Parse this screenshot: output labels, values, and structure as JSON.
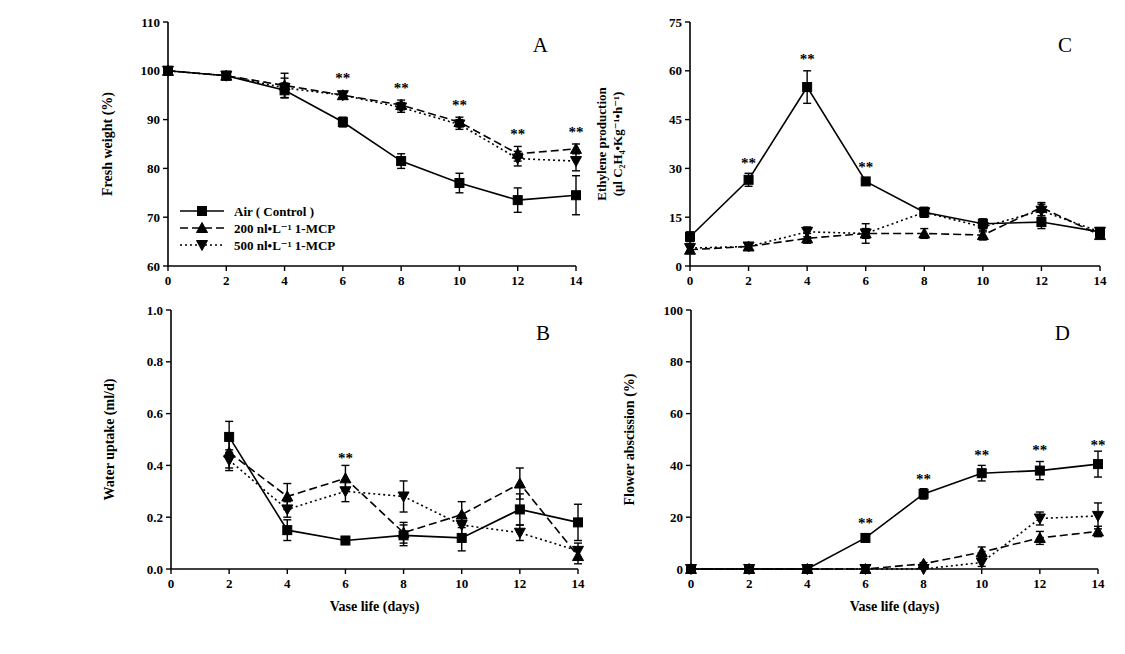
{
  "chart_data": [
    {
      "type": "line",
      "title": "A",
      "ylabel": "Fresh weight (%)",
      "x": [
        0,
        2,
        4,
        6,
        8,
        10,
        12,
        14
      ],
      "xlim": [
        0,
        14
      ],
      "xticks": [
        0,
        2,
        4,
        6,
        8,
        10,
        12,
        14
      ],
      "ylim": [
        60,
        110
      ],
      "yticks": [
        60,
        70,
        80,
        90,
        100,
        110
      ],
      "legend": "bottom-left",
      "series": [
        {
          "name": "Air ( Control )",
          "color": "#000000",
          "marker": "square",
          "line_style": "solid",
          "values": [
            100,
            99,
            96,
            89.5,
            81.5,
            77,
            73.5,
            74.5
          ],
          "errors": [
            0,
            0.5,
            1.5,
            1,
            1.5,
            2,
            2.5,
            4
          ]
        },
        {
          "name": "200 nl•L⁻¹ 1-MCP",
          "color": "#000000",
          "marker": "triangle-up",
          "line_style": "dashed",
          "values": [
            100,
            99,
            97,
            95,
            93,
            89.5,
            83,
            84
          ],
          "errors": [
            0,
            0.5,
            2.5,
            0.5,
            1,
            1,
            1.5,
            1
          ]
        },
        {
          "name": "500 nl•L⁻¹ 1-MCP",
          "color": "#000000",
          "marker": "triangle-down",
          "line_style": "dotted",
          "values": [
            100,
            99,
            96.5,
            95,
            92.5,
            89,
            82,
            81.5
          ],
          "errors": [
            0,
            0.5,
            2,
            0.5,
            1,
            1,
            1.5,
            2
          ]
        }
      ],
      "annotations": [
        {
          "x": 6,
          "y": 97.5,
          "text": "**"
        },
        {
          "x": 8,
          "y": 95.5,
          "text": "**"
        },
        {
          "x": 10,
          "y": 92,
          "text": "**"
        },
        {
          "x": 12,
          "y": 86,
          "text": "**"
        },
        {
          "x": 14,
          "y": 86.5,
          "text": "**"
        }
      ]
    },
    {
      "type": "line",
      "title": "B",
      "ylabel": "Water  uptake (ml/d)",
      "xlabel": "Vase life (days)",
      "x": [
        2,
        4,
        6,
        8,
        10,
        12,
        14
      ],
      "xlim": [
        0,
        14
      ],
      "xticks": [
        0,
        2,
        4,
        6,
        8,
        10,
        12,
        14
      ],
      "ylim": [
        0,
        1
      ],
      "yticks": [
        {
          "value": 0,
          "label": "0.0"
        },
        {
          "value": 0.2,
          "label": "0.2"
        },
        {
          "value": 0.4,
          "label": "0.4"
        },
        {
          "value": 0.6,
          "label": "0.6"
        },
        {
          "value": 0.8,
          "label": "0.8"
        },
        {
          "value": 1,
          "label": "1.0"
        }
      ],
      "series": [
        {
          "color": "#000000",
          "marker": "square",
          "line_style": "solid",
          "values": [
            0.51,
            0.15,
            0.11,
            0.13,
            0.12,
            0.23,
            0.18
          ],
          "errors": [
            0.06,
            0.04,
            0.015,
            0.04,
            0.05,
            0.06,
            0.07
          ]
        },
        {
          "color": "#000000",
          "marker": "triangle-up",
          "line_style": "dashed",
          "values": [
            0.45,
            0.28,
            0.35,
            0.14,
            0.21,
            0.33,
            0.05
          ],
          "errors": [
            0.06,
            0.05,
            0.05,
            0.04,
            0.05,
            0.06,
            0.03
          ]
        },
        {
          "color": "#000000",
          "marker": "triangle-down",
          "line_style": "dotted",
          "values": [
            0.42,
            0.23,
            0.3,
            0.28,
            0.17,
            0.14,
            0.07
          ],
          "errors": [
            0.04,
            0.03,
            0.04,
            0.06,
            0.04,
            0.03,
            0.03
          ]
        }
      ],
      "annotations": [
        {
          "x": 6,
          "y": 0.41,
          "text": "**"
        }
      ]
    },
    {
      "type": "line",
      "title": "C",
      "ylabel": [
        "Ethylene production",
        "(μl C₂H₄•Kg⁻¹•h⁻¹)"
      ],
      "x": [
        0,
        2,
        4,
        6,
        8,
        10,
        12,
        14
      ],
      "xlim": [
        0,
        14
      ],
      "xticks": [
        0,
        2,
        4,
        6,
        8,
        10,
        12,
        14
      ],
      "ylim": [
        0,
        75
      ],
      "yticks": [
        0,
        15,
        30,
        45,
        60,
        75
      ],
      "series": [
        {
          "color": "#000000",
          "marker": "square",
          "line_style": "solid",
          "values": [
            9,
            26.5,
            55,
            26,
            16.5,
            13,
            13.5,
            10.5
          ],
          "errors": [
            1.5,
            2,
            5,
            0.5,
            1.5,
            1.5,
            2,
            1
          ]
        },
        {
          "color": "#000000",
          "marker": "triangle-up",
          "line_style": "dashed",
          "values": [
            5,
            6,
            8.5,
            10,
            10,
            9.5,
            18,
            9.5
          ],
          "errors": [
            1,
            1,
            1.5,
            1.5,
            1.5,
            1.5,
            1.5,
            1
          ]
        },
        {
          "color": "#000000",
          "marker": "triangle-down",
          "line_style": "dotted",
          "values": [
            5.5,
            6,
            10.5,
            10,
            16.5,
            12,
            17,
            10.5
          ],
          "errors": [
            1,
            1,
            1.5,
            3,
            1.5,
            1.5,
            2,
            1
          ]
        }
      ],
      "annotations": [
        {
          "x": 2,
          "y": 30,
          "text": "**"
        },
        {
          "x": 4,
          "y": 62,
          "text": "**"
        },
        {
          "x": 6,
          "y": 29,
          "text": "**"
        }
      ]
    },
    {
      "type": "line",
      "title": "D",
      "ylabel": "Flower abscission (%)",
      "xlabel": "Vase life (days)",
      "x": [
        0,
        2,
        4,
        6,
        8,
        10,
        12,
        14
      ],
      "xlim": [
        0,
        14
      ],
      "xticks": [
        0,
        2,
        4,
        6,
        8,
        10,
        12,
        14
      ],
      "ylim": [
        0,
        100
      ],
      "yticks": [
        0,
        20,
        40,
        60,
        80,
        100
      ],
      "series": [
        {
          "color": "#000000",
          "marker": "square",
          "line_style": "solid",
          "values": [
            0,
            0,
            0,
            12,
            29,
            37,
            38,
            40.5
          ],
          "errors": [
            0,
            0,
            0,
            1.5,
            2,
            3,
            3.5,
            5
          ]
        },
        {
          "color": "#000000",
          "marker": "triangle-up",
          "line_style": "dashed",
          "values": [
            0,
            0,
            0,
            0,
            2,
            6.5,
            12,
            14.5
          ],
          "errors": [
            0,
            0,
            0,
            0,
            0.5,
            2,
            2.5,
            2
          ]
        },
        {
          "color": "#000000",
          "marker": "triangle-down",
          "line_style": "dotted",
          "values": [
            0,
            0,
            0,
            0,
            0,
            2.5,
            19.5,
            20.5
          ],
          "errors": [
            0,
            0,
            0,
            0,
            0,
            1.5,
            2.5,
            5
          ]
        }
      ],
      "annotations": [
        {
          "x": 6,
          "y": 16,
          "text": "**"
        },
        {
          "x": 8,
          "y": 33,
          "text": "**"
        },
        {
          "x": 10,
          "y": 42,
          "text": "**"
        },
        {
          "x": 12,
          "y": 44,
          "text": "**"
        },
        {
          "x": 14,
          "y": 46,
          "text": "**"
        }
      ]
    }
  ]
}
